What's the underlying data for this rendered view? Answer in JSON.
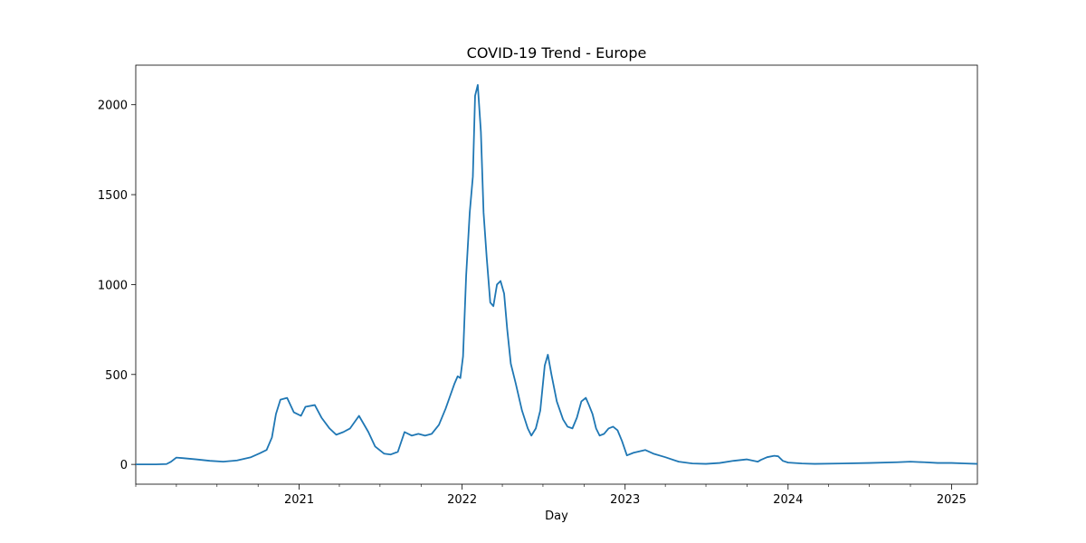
{
  "chart_data": {
    "type": "line",
    "title": "COVID-19 Trend - Europe",
    "xlabel": "Day",
    "ylabel": "",
    "xlim": [
      "2020-01-01",
      "2025-02-28"
    ],
    "ylim": [
      -110,
      2220
    ],
    "x_ticks": [
      {
        "date": "2021-01-01",
        "label": "2021"
      },
      {
        "date": "2022-01-01",
        "label": "2022"
      },
      {
        "date": "2023-01-01",
        "label": "2023"
      },
      {
        "date": "2024-01-01",
        "label": "2024"
      },
      {
        "date": "2025-01-01",
        "label": "2025"
      }
    ],
    "x_minor_ticks": [
      "2020-01-01",
      "2020-04-01",
      "2020-07-01",
      "2020-10-01",
      "2021-04-01",
      "2021-07-01",
      "2021-10-01",
      "2022-04-01",
      "2022-07-01",
      "2022-10-01",
      "2023-04-01",
      "2023-07-01",
      "2023-10-01",
      "2024-04-01",
      "2024-07-01",
      "2024-10-01"
    ],
    "y_ticks": [
      0,
      500,
      1000,
      1500,
      2000
    ],
    "grid": false,
    "line_color": "#1f77b4",
    "series": [
      {
        "name": "",
        "x": [
          "2020-01-01",
          "2020-02-15",
          "2020-03-10",
          "2020-03-20",
          "2020-04-01",
          "2020-04-15",
          "2020-05-15",
          "2020-06-15",
          "2020-07-15",
          "2020-08-15",
          "2020-09-15",
          "2020-10-05",
          "2020-10-20",
          "2020-11-01",
          "2020-11-10",
          "2020-11-20",
          "2020-12-05",
          "2020-12-20",
          "2021-01-05",
          "2021-01-15",
          "2021-02-05",
          "2021-02-20",
          "2021-03-10",
          "2021-03-25",
          "2021-04-10",
          "2021-04-25",
          "2021-05-15",
          "2021-06-05",
          "2021-06-20",
          "2021-07-10",
          "2021-07-25",
          "2021-08-10",
          "2021-08-25",
          "2021-09-10",
          "2021-09-25",
          "2021-10-10",
          "2021-10-25",
          "2021-11-10",
          "2021-11-25",
          "2021-12-05",
          "2021-12-15",
          "2021-12-22",
          "2021-12-28",
          "2022-01-03",
          "2022-01-10",
          "2022-01-18",
          "2022-01-25",
          "2022-01-30",
          "2022-02-05",
          "2022-02-12",
          "2022-02-18",
          "2022-02-25",
          "2022-03-05",
          "2022-03-12",
          "2022-03-20",
          "2022-03-28",
          "2022-04-05",
          "2022-04-12",
          "2022-04-20",
          "2022-05-01",
          "2022-05-15",
          "2022-05-28",
          "2022-06-05",
          "2022-06-15",
          "2022-06-25",
          "2022-07-05",
          "2022-07-12",
          "2022-07-20",
          "2022-08-01",
          "2022-08-15",
          "2022-08-25",
          "2022-09-05",
          "2022-09-15",
          "2022-09-25",
          "2022-10-05",
          "2022-10-12",
          "2022-10-20",
          "2022-10-28",
          "2022-11-05",
          "2022-11-15",
          "2022-11-25",
          "2022-12-05",
          "2022-12-15",
          "2022-12-25",
          "2023-01-05",
          "2023-01-20",
          "2023-02-15",
          "2023-03-05",
          "2023-04-01",
          "2023-05-01",
          "2023-06-01",
          "2023-07-01",
          "2023-08-01",
          "2023-09-01",
          "2023-10-01",
          "2023-10-25",
          "2023-11-01",
          "2023-11-15",
          "2023-12-01",
          "2023-12-10",
          "2023-12-20",
          "2024-01-01",
          "2024-02-01",
          "2024-03-01",
          "2024-05-01",
          "2024-07-01",
          "2024-09-01",
          "2024-10-01",
          "2024-11-01",
          "2024-12-01",
          "2025-01-01",
          "2025-02-01",
          "2025-02-28"
        ],
        "y": [
          0,
          0,
          2,
          15,
          38,
          35,
          28,
          20,
          15,
          22,
          40,
          62,
          80,
          150,
          280,
          360,
          370,
          290,
          270,
          320,
          330,
          260,
          200,
          165,
          180,
          200,
          270,
          180,
          100,
          60,
          55,
          70,
          180,
          160,
          170,
          160,
          170,
          220,
          310,
          380,
          450,
          490,
          480,
          600,
          1050,
          1400,
          1600,
          2050,
          2110,
          1850,
          1400,
          1150,
          900,
          880,
          1000,
          1020,
          950,
          750,
          560,
          450,
          300,
          200,
          160,
          200,
          300,
          550,
          610,
          500,
          350,
          250,
          210,
          200,
          260,
          350,
          370,
          330,
          280,
          200,
          160,
          170,
          200,
          210,
          190,
          130,
          50,
          65,
          80,
          60,
          40,
          15,
          5,
          3,
          8,
          20,
          28,
          15,
          25,
          40,
          48,
          45,
          20,
          10,
          5,
          3,
          5,
          8,
          12,
          15,
          12,
          8,
          8,
          5,
          3
        ]
      }
    ]
  }
}
